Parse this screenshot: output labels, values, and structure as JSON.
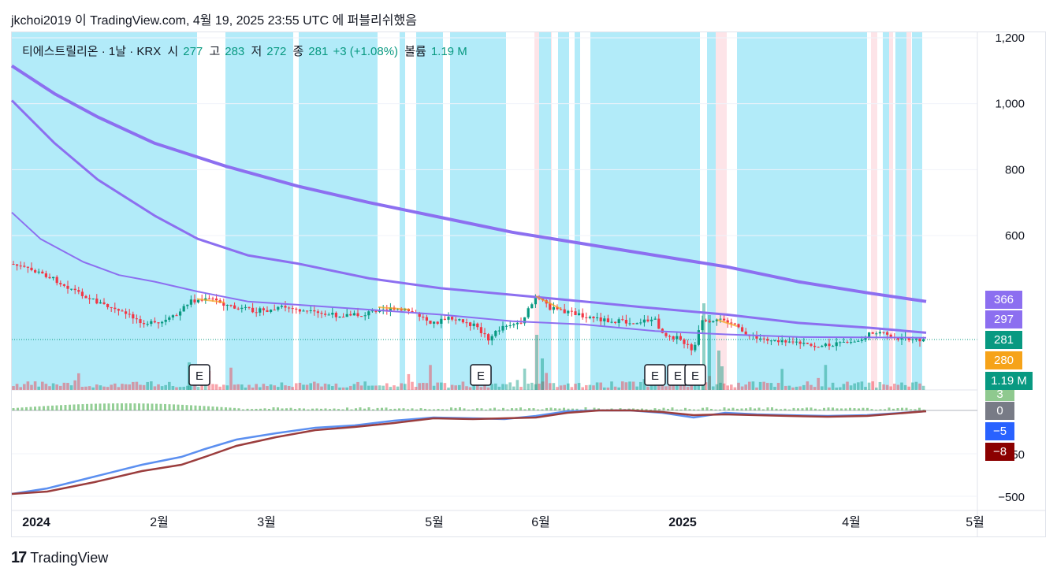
{
  "header": {
    "text": "jkchoi2019 이 TradingView.com, 4월 19, 2025 23:55 UTC 에 퍼블리쉬했음"
  },
  "legend": {
    "symbol": "티에스트릴리온 · 1날 · KRX",
    "open_label": "시",
    "open": "277",
    "high_label": "고",
    "high": "283",
    "low_label": "저",
    "low": "272",
    "close_label": "종",
    "close": "281",
    "change": "+3 (+1.08%)",
    "volume_label": "볼륨",
    "volume": "1.19 M"
  },
  "footer": {
    "brand": "TradingView"
  },
  "colors": {
    "up": "#089981",
    "down": "#f23645",
    "ma_purple": "#8c6ff0",
    "zone_blue": "#b2ebf9",
    "zone_pink": "#fde4e8",
    "macd_blue": "#5b8ff0",
    "signal_red": "#9b3d3d",
    "orange": "#f6a319"
  },
  "chart_data": {
    "type": "candlestick",
    "x_tick_labels": [
      "2024",
      "2월",
      "3월",
      "5월",
      "6월",
      "2025",
      "4월",
      "5월"
    ],
    "y_axis_main": {
      "ticks": [
        1200,
        1000,
        800,
        600
      ],
      "range": [
        320,
        1200
      ]
    },
    "y_axis_indicator": {
      "ticks": [
        -500
      ],
      "visible_tick_partial": "50"
    },
    "price_tags": [
      {
        "value": "366",
        "color": "#8c6ff0"
      },
      {
        "value": "297",
        "color": "#8c6ff0"
      },
      {
        "value": "281",
        "color": "#089981"
      },
      {
        "value": "280",
        "color": "#f6a319"
      },
      {
        "value": "1.19 M",
        "color": "#089981"
      }
    ],
    "indicator_tags": [
      {
        "value": "3",
        "color": "#8fc98f"
      },
      {
        "value": "0",
        "color": "#787b86"
      },
      {
        "value": "−5",
        "color": "#2962ff"
      },
      {
        "value": "−8",
        "color": "#8b0000"
      }
    ],
    "earnings_markers": [
      "E",
      "E",
      "E",
      "E",
      "E"
    ],
    "ma_long_points": [
      [
        0,
        1115
      ],
      [
        60,
        1030
      ],
      [
        120,
        960
      ],
      [
        200,
        880
      ],
      [
        300,
        810
      ],
      [
        400,
        750
      ],
      [
        500,
        700
      ],
      [
        600,
        655
      ],
      [
        700,
        610
      ],
      [
        800,
        575
      ],
      [
        900,
        540
      ],
      [
        1000,
        505
      ],
      [
        1100,
        460
      ],
      [
        1200,
        425
      ],
      [
        1279,
        400
      ]
    ],
    "ma_mid_points": [
      [
        0,
        1010
      ],
      [
        60,
        880
      ],
      [
        120,
        770
      ],
      [
        200,
        660
      ],
      [
        260,
        590
      ],
      [
        330,
        540
      ],
      [
        400,
        515
      ],
      [
        500,
        470
      ],
      [
        600,
        440
      ],
      [
        700,
        420
      ],
      [
        800,
        400
      ],
      [
        880,
        383
      ],
      [
        1000,
        360
      ],
      [
        1100,
        335
      ],
      [
        1200,
        320
      ],
      [
        1279,
        305
      ]
    ],
    "ma_short_points": [
      [
        0,
        670
      ],
      [
        40,
        590
      ],
      [
        100,
        520
      ],
      [
        150,
        480
      ],
      [
        200,
        460
      ],
      [
        260,
        430
      ],
      [
        330,
        400
      ],
      [
        400,
        390
      ],
      [
        500,
        375
      ],
      [
        600,
        360
      ],
      [
        700,
        340
      ],
      [
        800,
        330
      ],
      [
        900,
        310
      ],
      [
        1000,
        300
      ],
      [
        1100,
        292
      ],
      [
        1279,
        290
      ]
    ]
  }
}
